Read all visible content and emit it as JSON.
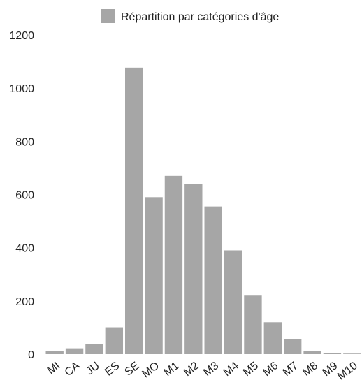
{
  "chart_data": {
    "type": "bar",
    "title": "",
    "xlabel": "",
    "ylabel": "",
    "categories": [
      "MI",
      "CA",
      "JU",
      "ES",
      "SE",
      "MO",
      "M1",
      "M2",
      "M3",
      "M4",
      "M5",
      "M6",
      "M7",
      "M8",
      "M9",
      "M10"
    ],
    "series": [
      {
        "name": "Répartition par catégories d'âge",
        "color": "#a6a6a6",
        "values": [
          12,
          22,
          38,
          101,
          1077,
          590,
          670,
          640,
          555,
          390,
          220,
          120,
          57,
          12,
          3,
          2
        ]
      }
    ],
    "ylim": [
      0,
      1200
    ],
    "yticks": [
      0,
      200,
      400,
      600,
      800,
      1000,
      1200
    ],
    "grid": false,
    "legend_position": "top"
  }
}
